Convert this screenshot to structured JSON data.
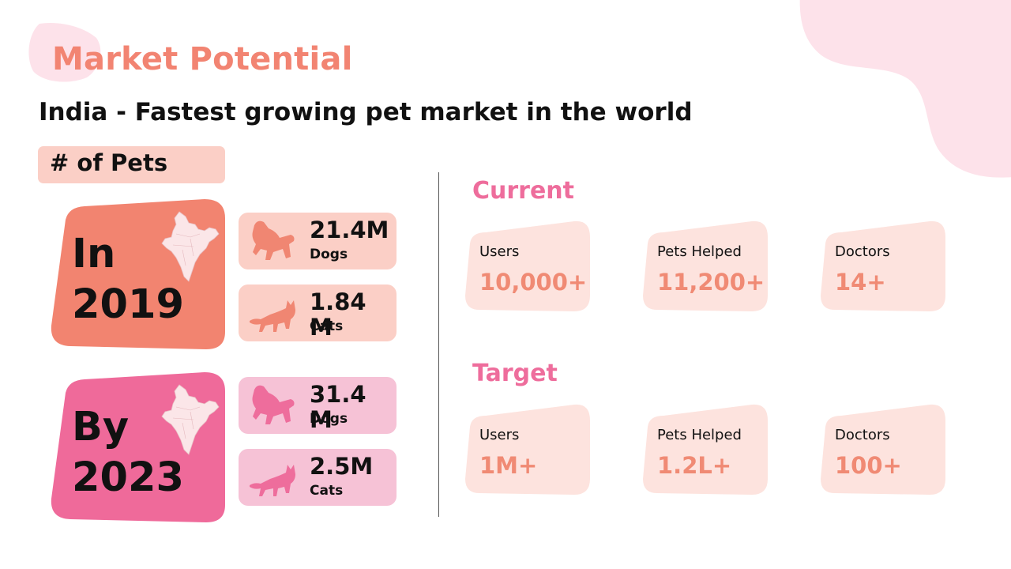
{
  "slide": {
    "title": "Market Potential",
    "subtitle": "India - Fastest growing pet market in the world",
    "pets_heading": "# of Pets"
  },
  "years": [
    {
      "label_line1": "In",
      "label_line2": "2019",
      "card_color": "#f28470",
      "tile_color": "#fbcfc6",
      "animal_color": "#f08672",
      "dogs": {
        "value": "21.4M",
        "label": "Dogs"
      },
      "cats": {
        "value": "1.84 M",
        "label": "Cats"
      }
    },
    {
      "label_line1": "By",
      "label_line2": "2023",
      "card_color": "#ef6a9a",
      "tile_color": "#f6c2d6",
      "animal_color": "#ee6d9c",
      "dogs": {
        "value": "31.4 M",
        "label": "Dogs"
      },
      "cats": {
        "value": "2.5M",
        "label": "Cats"
      }
    }
  ],
  "current": {
    "heading": "Current",
    "metrics": [
      {
        "label": "Users",
        "value": "10,000+"
      },
      {
        "label": "Pets Helped",
        "value": "11,200+"
      },
      {
        "label": "Doctors",
        "value": "14+"
      }
    ]
  },
  "target": {
    "heading": "Target",
    "metrics": [
      {
        "label": "Users",
        "value": "1M+"
      },
      {
        "label": "Pets Helped",
        "value": "1.2L+"
      },
      {
        "label": "Doctors",
        "value": "100+"
      }
    ]
  },
  "colors": {
    "title": "#f28472",
    "section": "#ee6d9c",
    "metric_value": "#f08a74",
    "metric_card": "#fde3de",
    "blob": "#fde2ea",
    "map_fill": "#fbe6e8"
  },
  "icons": [
    "india-map-icon",
    "dog-icon",
    "cat-icon"
  ]
}
